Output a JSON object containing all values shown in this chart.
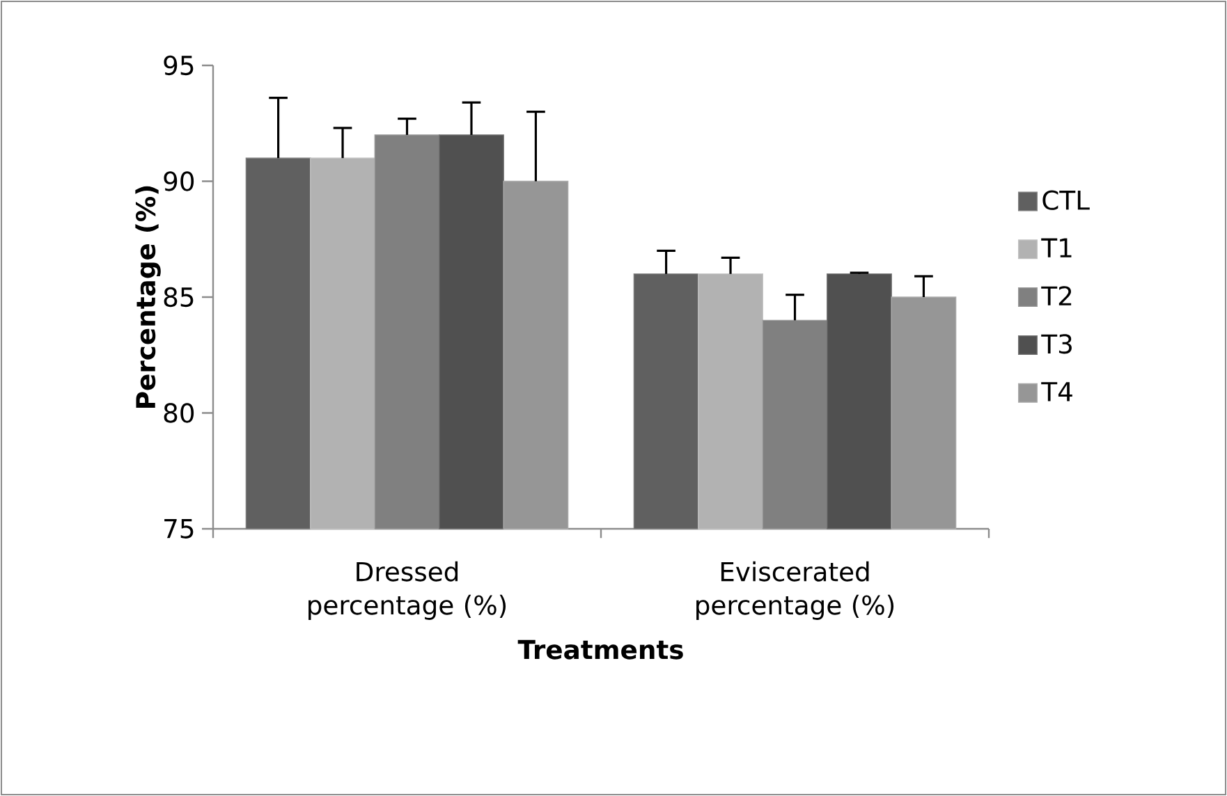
{
  "chart_data": {
    "type": "bar",
    "xlabel": "Treatments",
    "ylabel": "Percentage (%)",
    "categories": [
      "Dressed percentage (%)",
      "Eviscerated percentage (%)"
    ],
    "series": [
      {
        "name": "CTL",
        "color": "#606060",
        "values": [
          91,
          86
        ],
        "errors": [
          2.6,
          1.0
        ]
      },
      {
        "name": "T1",
        "color": "#b2b2b2",
        "values": [
          91,
          86
        ],
        "errors": [
          1.3,
          0.7
        ]
      },
      {
        "name": "T2",
        "color": "#808080",
        "values": [
          92,
          84
        ],
        "errors": [
          0.7,
          1.1
        ]
      },
      {
        "name": "T3",
        "color": "#505050",
        "values": [
          92,
          86
        ],
        "errors": [
          1.4,
          0.05
        ]
      },
      {
        "name": "T4",
        "color": "#969696",
        "values": [
          90,
          85
        ],
        "errors": [
          3.0,
          0.9
        ]
      }
    ],
    "ylim": [
      75,
      95
    ],
    "yticks": [
      75,
      80,
      85,
      90,
      95
    ],
    "grid": false,
    "legend": "right"
  }
}
